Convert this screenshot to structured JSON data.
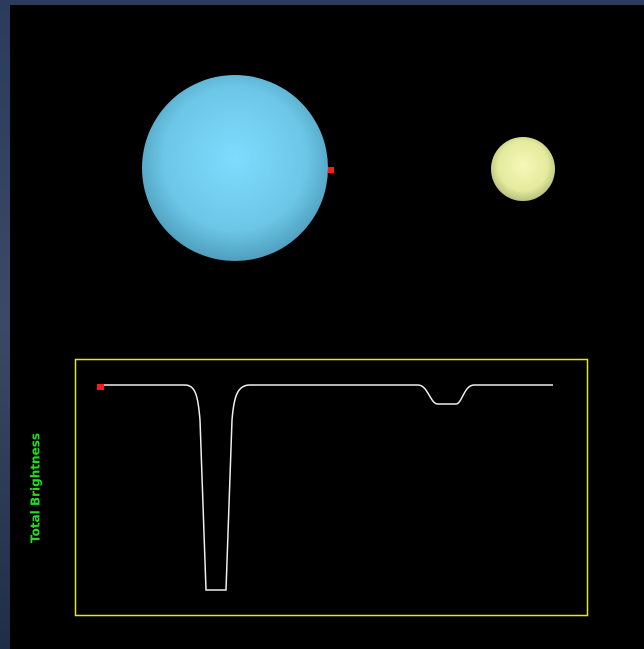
{
  "light_curve": {
    "y_label": "Total Brightness"
  }
}
